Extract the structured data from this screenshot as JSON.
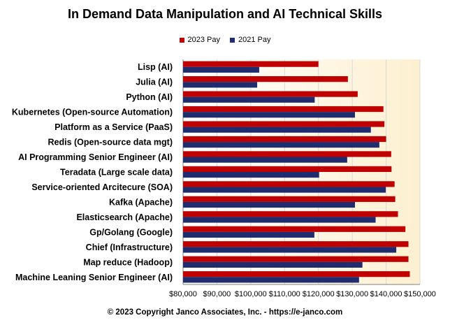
{
  "chart_data": {
    "type": "bar",
    "orientation": "horizontal",
    "title": "In Demand Data Manipulation  and AI Technical Skills",
    "footer": "© 2023 Copyright Janco Associates, Inc. - https://e-janco.com",
    "categories": [
      "Lisp (AI)",
      "Julia (AI)",
      "Python (AI)",
      "Kubernetes (Open-source Automation)",
      "Platform as a Service (PaaS)",
      "Redis (Open-source data mgt)",
      "AI Programming Senior Engineer (AI)",
      "Teradata  (Large scale data)",
      "Service-oriented Arcitecure (SOA)",
      "Kafka (Apache)",
      "Elasticsearch (Apache)",
      "Gp/Golang (Google)",
      "Chief (Infrastructure)",
      "Map reduce (Hadoop)",
      "Machine Leaning Senior Engineer (AI)"
    ],
    "series": [
      {
        "name": "2023 Pay",
        "color": "#c00000",
        "values": [
          120000,
          128700,
          131600,
          139200,
          139500,
          140000,
          141500,
          141600,
          142500,
          142700,
          143500,
          145700,
          146600,
          146600,
          147000
        ]
      },
      {
        "name": "2021 Pay",
        "color": "#1f2d6e",
        "values": [
          102500,
          101900,
          118900,
          130800,
          135500,
          138000,
          128500,
          120200,
          139900,
          130800,
          136900,
          118800,
          143000,
          133000,
          132000
        ]
      }
    ],
    "xlim": [
      80000,
      150000
    ],
    "xticks": [
      80000,
      90000,
      100000,
      110000,
      120000,
      130000,
      140000,
      150000
    ],
    "xtick_labels": [
      "$80,000",
      "$90,000",
      "$100,000",
      "$110,000",
      "$120,000",
      "$130,000",
      "$140,000",
      "$150,000"
    ],
    "legend_position": "top",
    "plot_background": "#fdf0d0",
    "grid": true
  }
}
